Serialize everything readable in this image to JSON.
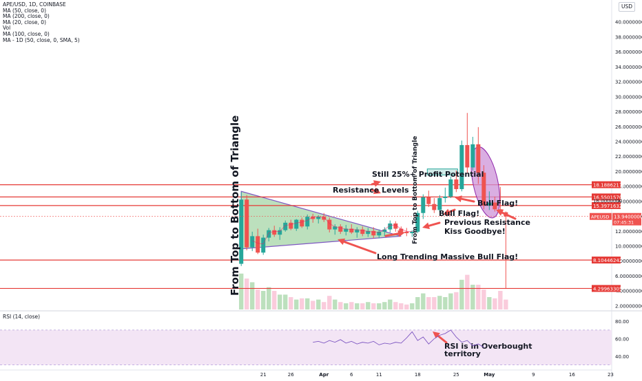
{
  "legend": {
    "symbol": "APE/USD, 1D, COINBASE",
    "lines": [
      "MA (50, close, 0)",
      "MA (200, close, 0)",
      "MA (20, close, 0)",
      "Vol",
      "MA (100, close, 0)",
      "MA - 1D (50, close, 0, SMA, 5)"
    ]
  },
  "currency": "USD",
  "rsi_legend": "RSI (14, close)",
  "colors": {
    "up": "#26a69a",
    "down": "#ef5350",
    "resistance_line": "#e53935",
    "triangle_fill": "#a5d6a7",
    "ellipse_fill": "#ce93d8",
    "rsi_band": "#f3e5f5",
    "rsi_line": "#7e57c2"
  },
  "price_labels": [
    {
      "text": "18.18862177",
      "value": 18.18862177
    },
    {
      "text": "16.55015701",
      "value": 16.55015701
    },
    {
      "text": "15.39716329",
      "value": 15.39716329
    },
    {
      "text": "8.10446242",
      "value": 8.10446242
    },
    {
      "text": "4.29963305",
      "value": 4.29963305
    }
  ],
  "partial_label": "16.0000000",
  "current_price": {
    "symbol": "APEUSD",
    "price": "13.94000000",
    "countdown": "07:45:31",
    "value": 13.94
  },
  "annotations": {
    "resistance": "Resistance Levels",
    "profit": "Still 25%+ Profit Potential",
    "bull_flag_1": "Bull Flag!",
    "bull_flag_2": "Bull Flag!",
    "previous_resistance_1": "Previous Resistance",
    "previous_resistance_2": "Kiss Goodbye!",
    "long_trend": "Long Trending Massive Bull Flag!",
    "top_to_bottom_large": "From Top to Bottom of Triangle",
    "top_to_bottom_small": "From Top to Bottom of Triangle",
    "rsi_note_1": "RSI is in Overbought",
    "rsi_note_2": "territory"
  },
  "chart_data": {
    "type": "candlestick",
    "price_axis": {
      "ylim": [
        1.3,
        42
      ],
      "ticks": [
        "2.00000000",
        "4.00000000",
        "6.00000000",
        "8.00000000",
        "10.00000000",
        "12.00000000",
        "14.00000000",
        "16.00000000",
        "18.00000000",
        "20.00000000",
        "22.00000000",
        "24.00000000",
        "26.00000000",
        "28.00000000",
        "30.00000000",
        "32.00000000",
        "34.00000000",
        "36.00000000",
        "38.00000000",
        "40.00000000"
      ]
    },
    "rsi_axis": {
      "ylim": [
        25,
        88
      ],
      "ticks": [
        "40.00",
        "60.00",
        "80.00"
      ],
      "band": [
        30,
        70
      ]
    },
    "x_axis": {
      "ticks": [
        {
          "label": "21",
          "day": 4
        },
        {
          "label": "26",
          "day": 9
        },
        {
          "label": "Apr",
          "day": 15
        },
        {
          "label": "6",
          "day": 20
        },
        {
          "label": "11",
          "day": 25
        },
        {
          "label": "18",
          "day": 32
        },
        {
          "label": "25",
          "day": 39
        },
        {
          "label": "May",
          "day": 45
        },
        {
          "label": "9",
          "day": 53
        },
        {
          "label": "16",
          "day": 60
        },
        {
          "label": "23",
          "day": 67
        }
      ],
      "xlim": [
        -1.9,
        67.2
      ]
    },
    "candles": [
      {
        "o": 7.6,
        "h": 17.2,
        "l": 7.3,
        "c": 16.2
      },
      {
        "o": 16.2,
        "h": 16.8,
        "l": 9.4,
        "c": 9.8
      },
      {
        "o": 9.8,
        "h": 11.9,
        "l": 9.3,
        "c": 11.3
      },
      {
        "o": 11.3,
        "h": 12.3,
        "l": 8.9,
        "c": 9.1
      },
      {
        "o": 9.1,
        "h": 11.5,
        "l": 8.8,
        "c": 11.1
      },
      {
        "o": 11.1,
        "h": 12.4,
        "l": 10.6,
        "c": 12.1
      },
      {
        "o": 12.1,
        "h": 12.7,
        "l": 11.2,
        "c": 11.5
      },
      {
        "o": 11.5,
        "h": 12.5,
        "l": 10.8,
        "c": 12.1
      },
      {
        "o": 12.1,
        "h": 13.4,
        "l": 11.9,
        "c": 13.1
      },
      {
        "o": 13.1,
        "h": 13.5,
        "l": 12.1,
        "c": 12.3
      },
      {
        "o": 12.3,
        "h": 13.6,
        "l": 12.0,
        "c": 13.5
      },
      {
        "o": 13.5,
        "h": 13.8,
        "l": 12.4,
        "c": 12.6
      },
      {
        "o": 12.6,
        "h": 14.2,
        "l": 12.2,
        "c": 13.9
      },
      {
        "o": 13.9,
        "h": 14.3,
        "l": 13.1,
        "c": 13.6
      },
      {
        "o": 13.6,
        "h": 14.1,
        "l": 13.0,
        "c": 13.9
      },
      {
        "o": 13.9,
        "h": 14.4,
        "l": 13.2,
        "c": 13.5
      },
      {
        "o": 13.5,
        "h": 13.8,
        "l": 11.8,
        "c": 12.2
      },
      {
        "o": 12.2,
        "h": 12.9,
        "l": 11.5,
        "c": 12.6
      },
      {
        "o": 12.6,
        "h": 12.9,
        "l": 11.6,
        "c": 11.9
      },
      {
        "o": 11.9,
        "h": 12.8,
        "l": 11.4,
        "c": 12.3
      },
      {
        "o": 12.3,
        "h": 12.9,
        "l": 11.6,
        "c": 11.8
      },
      {
        "o": 11.8,
        "h": 12.5,
        "l": 11.1,
        "c": 12.2
      },
      {
        "o": 12.2,
        "h": 12.6,
        "l": 11.3,
        "c": 11.6
      },
      {
        "o": 11.6,
        "h": 12.4,
        "l": 11.2,
        "c": 12.0
      },
      {
        "o": 12.0,
        "h": 12.5,
        "l": 11.0,
        "c": 11.4
      },
      {
        "o": 11.4,
        "h": 12.2,
        "l": 11.0,
        "c": 11.9
      },
      {
        "o": 11.9,
        "h": 12.5,
        "l": 11.3,
        "c": 12.2
      },
      {
        "o": 12.2,
        "h": 13.4,
        "l": 11.8,
        "c": 13.0
      },
      {
        "o": 13.0,
        "h": 13.3,
        "l": 11.9,
        "c": 12.3
      },
      {
        "o": 12.3,
        "h": 12.6,
        "l": 11.6,
        "c": 11.9
      },
      {
        "o": 11.9,
        "h": 12.4,
        "l": 11.3,
        "c": 11.7
      },
      {
        "o": 11.7,
        "h": 12.1,
        "l": 11.2,
        "c": 11.9
      },
      {
        "o": 11.9,
        "h": 14.7,
        "l": 11.7,
        "c": 14.4
      },
      {
        "o": 14.4,
        "h": 16.9,
        "l": 13.6,
        "c": 16.5
      },
      {
        "o": 16.5,
        "h": 17.4,
        "l": 15.2,
        "c": 15.6
      },
      {
        "o": 15.6,
        "h": 16.4,
        "l": 14.4,
        "c": 14.8
      },
      {
        "o": 14.8,
        "h": 16.8,
        "l": 14.5,
        "c": 16.4
      },
      {
        "o": 16.4,
        "h": 17.8,
        "l": 15.8,
        "c": 16.6
      },
      {
        "o": 16.6,
        "h": 19.3,
        "l": 16.4,
        "c": 18.9
      },
      {
        "o": 18.9,
        "h": 20.1,
        "l": 17.2,
        "c": 17.6
      },
      {
        "o": 17.6,
        "h": 24.1,
        "l": 17.3,
        "c": 23.5
      },
      {
        "o": 23.5,
        "h": 27.8,
        "l": 19.8,
        "c": 20.5
      },
      {
        "o": 20.5,
        "h": 24.6,
        "l": 20.1,
        "c": 23.6
      },
      {
        "o": 23.6,
        "h": 25.9,
        "l": 18.3,
        "c": 19.8
      },
      {
        "o": 19.8,
        "h": 20.8,
        "l": 14.9,
        "c": 15.4
      },
      {
        "o": 15.4,
        "h": 17.3,
        "l": 14.8,
        "c": 15.8
      },
      {
        "o": 15.8,
        "h": 16.6,
        "l": 14.6,
        "c": 14.9
      },
      {
        "o": 14.9,
        "h": 17.9,
        "l": 14.2,
        "c": 14.5
      },
      {
        "o": 14.5,
        "h": 14.6,
        "l": 4.3,
        "c": 13.94
      }
    ],
    "volume": [
      2.9,
      2.5,
      2.2,
      1.6,
      1.5,
      1.8,
      1.5,
      1.2,
      1.2,
      1.0,
      0.8,
      0.9,
      0.9,
      0.7,
      0.8,
      0.6,
      1.1,
      0.8,
      0.6,
      0.5,
      0.6,
      0.5,
      0.5,
      0.6,
      0.5,
      0.5,
      0.6,
      0.8,
      0.6,
      0.5,
      0.4,
      0.5,
      1.0,
      1.3,
      1.0,
      1.0,
      1.1,
      1.0,
      1.3,
      1.4,
      2.4,
      2.8,
      2.0,
      2.0,
      1.6,
      1.0,
      0.9,
      1.5,
      0.8
    ],
    "rsi": {
      "start_day": 13,
      "values": [
        56,
        57,
        55,
        58,
        56,
        59,
        55,
        57,
        54,
        56,
        55,
        57,
        53,
        55,
        54,
        56,
        55,
        61,
        68,
        58,
        62,
        54,
        60,
        64,
        66,
        70,
        62,
        56,
        58,
        52,
        54,
        50
      ]
    },
    "horizontal_levels": [
      18.18862177,
      16.55015701,
      15.39716329,
      8.10446242,
      4.29963305
    ]
  }
}
